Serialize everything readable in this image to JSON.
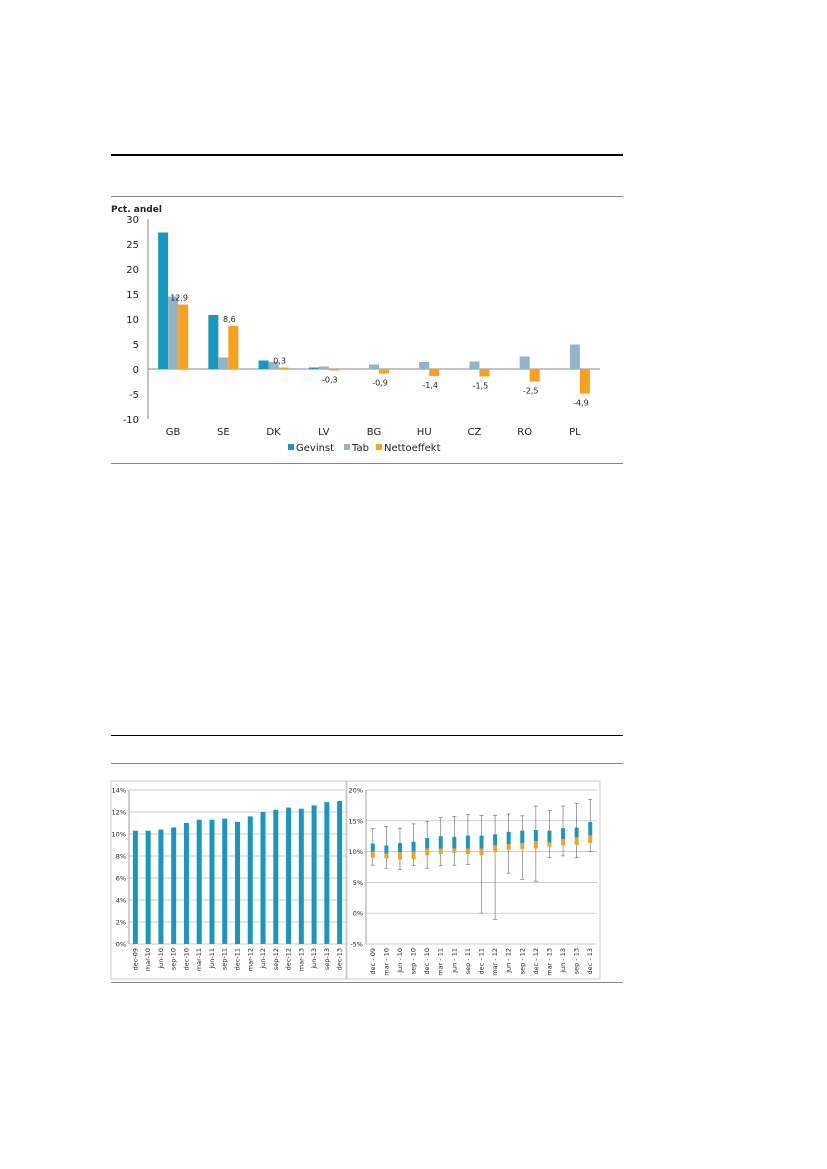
{
  "chart_data": [
    {
      "type": "bar",
      "title": "",
      "ylabel": "Pct. andel",
      "xlabel": "",
      "ylim": [
        -10,
        30
      ],
      "yticks": [
        30,
        25,
        20,
        15,
        10,
        5,
        0,
        -5,
        -10
      ],
      "categories": [
        "GB",
        "SE",
        "DK",
        "LV",
        "BG",
        "HU",
        "CZ",
        "RO",
        "PL"
      ],
      "series": [
        {
          "name": "Gevinst",
          "color": "#1897c1",
          "values": [
            27.3,
            10.8,
            1.7,
            0.3,
            0.0,
            0.0,
            0.0,
            0.0,
            0.0
          ]
        },
        {
          "name": "Tab",
          "color": "#93b3c9",
          "values": [
            14.5,
            2.3,
            1.4,
            0.5,
            0.9,
            1.4,
            1.5,
            2.5,
            4.9
          ]
        },
        {
          "name": "Nettoeffekt",
          "color": "#f8a11c",
          "values": [
            12.9,
            8.6,
            0.3,
            -0.3,
            -0.9,
            -1.4,
            -1.5,
            -2.5,
            -4.9
          ]
        }
      ],
      "data_labels": [
        "12,9",
        "8,6",
        "0,3",
        "-0,3",
        "-0,9",
        "-1,4",
        "-1,5",
        "-2,5",
        "-4,9"
      ],
      "legend": [
        "Gevinst",
        "Tab",
        "Nettoeffekt"
      ]
    },
    {
      "type": "bar",
      "title": "",
      "ylim": [
        0,
        14
      ],
      "yticks": [
        "14%",
        "12%",
        "10%",
        "8%",
        "6%",
        "4%",
        "2%",
        "0%"
      ],
      "color": "#1897c1",
      "categories": [
        "dec-09",
        "mar-10",
        "jun-10",
        "sep-10",
        "dec-10",
        "mar-11",
        "jun-11",
        "sep-11",
        "dec-11",
        "mar-12",
        "jun-12",
        "sep-12",
        "dec-12",
        "mar-13",
        "jun-13",
        "sep-13",
        "dec-13"
      ],
      "values": [
        10.3,
        10.3,
        10.4,
        10.6,
        11.0,
        11.3,
        11.3,
        11.4,
        11.1,
        11.6,
        12.0,
        12.2,
        12.4,
        12.3,
        12.6,
        12.9,
        13.0
      ]
    },
    {
      "type": "boxplot",
      "title": "",
      "ylim": [
        -5,
        20
      ],
      "yticks": [
        "20%",
        "15%",
        "10%",
        "5%",
        "0%",
        "-5%"
      ],
      "colors": {
        "upper": "#1897c1",
        "lower": "#f8a11c",
        "whisker": "#666666"
      },
      "categories": [
        "dec - 09",
        "mar - 10",
        "jun - 10",
        "sep - 10",
        "dec - 10",
        "mar - 11",
        "jun - 11",
        "sep - 11",
        "dec - 11",
        "mar - 12",
        "jun - 12",
        "sep - 12",
        "dec - 12",
        "mar - 13",
        "jun - 13",
        "sep - 13",
        "dec - 13"
      ],
      "min": [
        7.8,
        7.3,
        7.1,
        7.7,
        7.3,
        7.7,
        7.8,
        7.9,
        0.0,
        -1.0,
        6.5,
        5.5,
        5.2,
        9.0,
        9.3,
        9.0,
        10.0
      ],
      "q1": [
        9.0,
        8.9,
        8.7,
        8.8,
        9.4,
        9.6,
        9.8,
        9.6,
        9.4,
        9.9,
        10.3,
        10.4,
        10.5,
        10.8,
        11.0,
        11.1,
        11.4
      ],
      "median": [
        10.0,
        9.7,
        9.9,
        10.0,
        10.5,
        10.5,
        10.5,
        10.5,
        10.5,
        11.0,
        11.2,
        11.4,
        11.7,
        11.5,
        12.0,
        12.3,
        12.6
      ],
      "q3": [
        11.3,
        11.0,
        11.4,
        11.6,
        12.2,
        12.5,
        12.4,
        12.6,
        12.6,
        12.8,
        13.2,
        13.4,
        13.5,
        13.4,
        13.8,
        13.9,
        14.8
      ],
      "max": [
        13.7,
        14.1,
        13.8,
        14.5,
        14.9,
        15.5,
        15.7,
        16.0,
        15.9,
        15.9,
        16.1,
        15.8,
        17.4,
        16.7,
        17.4,
        17.8,
        18.5
      ]
    }
  ]
}
